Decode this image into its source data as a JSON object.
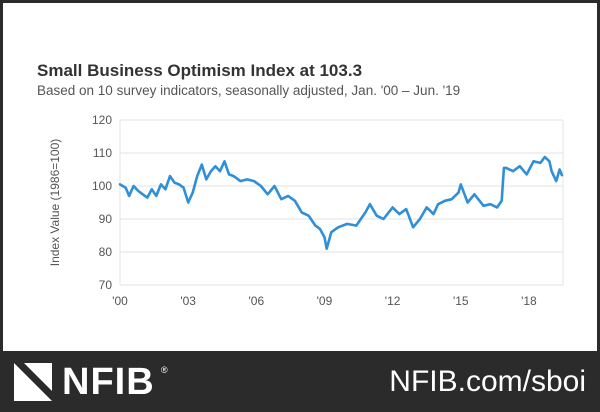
{
  "chart_data": {
    "type": "line",
    "title": "Small Business Optimism Index at 103.3",
    "subtitle": "Based on 10 survey indicators, seasonally adjusted, Jan. '00 – Jun. '19",
    "xlabel": "",
    "ylabel": "Index Value (1986=100)",
    "ylim": [
      70,
      120
    ],
    "yticks": [
      70,
      80,
      90,
      100,
      110,
      120
    ],
    "xlim": [
      2000,
      2019.5
    ],
    "xticks": [
      {
        "x": 2000,
        "label": "'00"
      },
      {
        "x": 2003,
        "label": "'03"
      },
      {
        "x": 2006,
        "label": "'06"
      },
      {
        "x": 2009,
        "label": "'09"
      },
      {
        "x": 2012,
        "label": "'12"
      },
      {
        "x": 2015,
        "label": "'15"
      },
      {
        "x": 2018,
        "label": "'18"
      }
    ],
    "grid": true,
    "color": "#2f8fd8",
    "series": [
      {
        "name": "Small Business Optimism Index",
        "x": [
          2000.0,
          2000.25,
          2000.4,
          2000.6,
          2000.8,
          2001.0,
          2001.2,
          2001.4,
          2001.6,
          2001.8,
          2002.0,
          2002.2,
          2002.4,
          2002.6,
          2002.8,
          2003.0,
          2003.2,
          2003.4,
          2003.6,
          2003.8,
          2004.0,
          2004.2,
          2004.4,
          2004.6,
          2004.8,
          2005.0,
          2005.3,
          2005.6,
          2005.9,
          2006.2,
          2006.5,
          2006.8,
          2007.1,
          2007.4,
          2007.7,
          2008.0,
          2008.3,
          2008.6,
          2008.8,
          2009.0,
          2009.1,
          2009.3,
          2009.6,
          2010.0,
          2010.4,
          2010.8,
          2011.0,
          2011.3,
          2011.6,
          2012.0,
          2012.3,
          2012.6,
          2012.9,
          2013.2,
          2013.5,
          2013.8,
          2014.0,
          2014.3,
          2014.6,
          2014.9,
          2015.0,
          2015.3,
          2015.6,
          2016.0,
          2016.3,
          2016.6,
          2016.8,
          2016.9,
          2017.0,
          2017.3,
          2017.6,
          2017.9,
          2018.2,
          2018.5,
          2018.7,
          2018.9,
          2019.0,
          2019.2,
          2019.35,
          2019.45
        ],
        "values": [
          100.5,
          99.5,
          97.0,
          100.0,
          98.5,
          97.5,
          96.5,
          99.0,
          97.0,
          100.5,
          99.0,
          103.0,
          101.0,
          100.5,
          99.5,
          95.0,
          98.0,
          103.0,
          106.5,
          102.0,
          104.5,
          106.0,
          104.5,
          107.5,
          103.5,
          103.0,
          101.5,
          102.0,
          101.5,
          100.0,
          97.5,
          100.0,
          96.0,
          97.0,
          95.5,
          92.0,
          91.0,
          88.0,
          87.0,
          84.5,
          81.0,
          86.0,
          87.5,
          88.5,
          88.0,
          92.0,
          94.5,
          91.0,
          90.0,
          93.5,
          91.5,
          93.0,
          87.5,
          90.0,
          93.5,
          91.5,
          94.5,
          95.5,
          96.0,
          98.0,
          100.5,
          95.0,
          97.5,
          94.0,
          94.5,
          93.5,
          95.5,
          105.5,
          105.5,
          104.5,
          106.0,
          103.5,
          107.5,
          107.0,
          108.8,
          107.5,
          104.5,
          101.5,
          105.0,
          103.3
        ]
      }
    ]
  },
  "footer": {
    "brand": "NFIB",
    "registered": "®",
    "url": "NFIB.com/sboi"
  }
}
